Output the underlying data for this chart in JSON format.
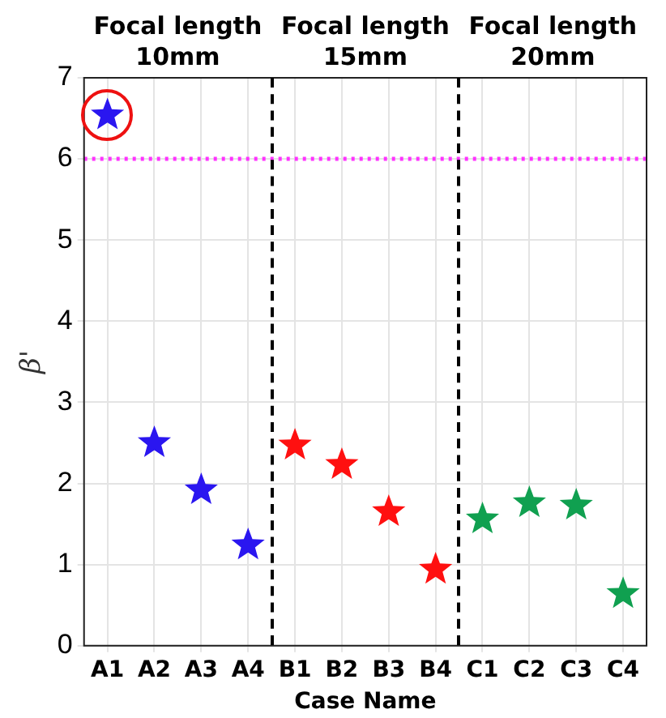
{
  "chart_data": {
    "type": "scatter",
    "xlabel": "Case Name",
    "ylabel": "β'",
    "annotations": [
      "Focal length\n10mm",
      "Focal length\n15mm",
      "Focal length\n20mm"
    ],
    "categories": [
      "A1",
      "A2",
      "A3",
      "A4",
      "B1",
      "B2",
      "B3",
      "B4",
      "C1",
      "C2",
      "C3",
      "C4"
    ],
    "series": [
      {
        "color": "#2a16f0",
        "values": [
          6.54,
          2.5,
          1.92,
          1.24,
          null,
          null,
          null,
          null,
          null,
          null,
          null,
          null
        ]
      },
      {
        "color": "#ff1010",
        "values": [
          null,
          null,
          null,
          null,
          2.47,
          2.23,
          1.65,
          0.94,
          null,
          null,
          null,
          null
        ]
      },
      {
        "color": "#10a050",
        "values": [
          null,
          null,
          null,
          null,
          null,
          null,
          null,
          null,
          1.56,
          1.76,
          1.73,
          0.64
        ]
      }
    ],
    "marker": "star",
    "grid": true,
    "ylim": [
      0,
      7
    ],
    "yticks": [
      0,
      1,
      2,
      3,
      4,
      5,
      6,
      7
    ],
    "ref_lines": [
      {
        "axis": "y",
        "value": 6,
        "color": "#ff33ff",
        "line_style": "dotted"
      }
    ]
  }
}
